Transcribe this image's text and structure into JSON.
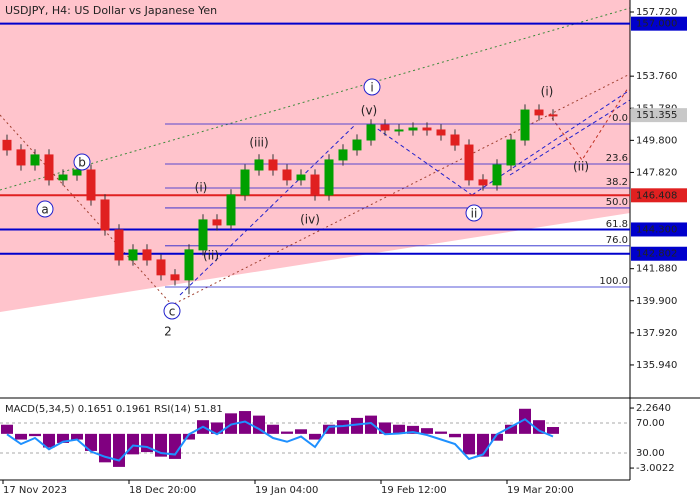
{
  "chart_data": [
    {
      "type": "candlestick",
      "title": "USDJPY, H4:  US Dollar vs Japanese Yen",
      "categories": [
        "17 Nov 2023",
        null,
        null,
        null,
        null,
        null,
        null,
        null,
        null,
        "18 Dec 20:00",
        null,
        null,
        null,
        null,
        null,
        null,
        null,
        null,
        "19 Jan 04:00",
        null,
        null,
        null,
        null,
        null,
        null,
        null,
        null,
        "19 Feb 12:00",
        null,
        null,
        null,
        null,
        null,
        null,
        null,
        null,
        "19 Mar 20:00",
        null,
        null,
        null
      ],
      "open": [
        149.8,
        149.21,
        148.28,
        148.9,
        147.36,
        147.66,
        147.97,
        146.12,
        144.27,
        142.42,
        143.04,
        142.42,
        141.5,
        141.19,
        143.04,
        144.89,
        144.58,
        146.43,
        147.97,
        148.59,
        147.97,
        147.36,
        147.66,
        146.43,
        148.59,
        149.21,
        149.82,
        150.75,
        150.44,
        150.44,
        150.56,
        150.44,
        150.13,
        149.51,
        147.36,
        147.05,
        148.28,
        149.82,
        151.67,
        151.37
      ],
      "high": [
        150.15,
        149.56,
        149.25,
        149.25,
        148.01,
        148.32,
        148.32,
        146.47,
        144.62,
        143.39,
        143.39,
        142.77,
        141.85,
        143.39,
        145.24,
        145.24,
        146.78,
        148.32,
        148.94,
        148.94,
        148.32,
        148.01,
        148.01,
        148.94,
        149.56,
        150.17,
        151.1,
        151.1,
        150.79,
        150.91,
        150.91,
        150.79,
        150.48,
        149.86,
        147.71,
        148.63,
        150.17,
        152.02,
        152.02,
        151.72
      ],
      "low": [
        148.86,
        147.93,
        147.93,
        147.01,
        147.01,
        147.31,
        145.77,
        143.92,
        142.07,
        142.07,
        142.07,
        141.15,
        140.84,
        140.3,
        142.69,
        144.23,
        144.23,
        146.08,
        147.62,
        147.62,
        147.01,
        147.01,
        146.08,
        146.08,
        148.24,
        148.86,
        149.47,
        150.09,
        150.09,
        150.09,
        150.09,
        149.78,
        149.16,
        147.01,
        146.7,
        146.7,
        147.93,
        149.47,
        151.02,
        151.02
      ],
      "close": [
        149.21,
        148.28,
        148.9,
        147.36,
        147.66,
        147.97,
        146.12,
        144.27,
        142.42,
        143.04,
        142.42,
        141.5,
        141.19,
        143.04,
        144.89,
        144.58,
        146.43,
        147.97,
        148.59,
        147.97,
        147.36,
        147.66,
        146.43,
        148.59,
        149.21,
        149.82,
        150.75,
        150.44,
        150.44,
        150.56,
        150.44,
        150.13,
        149.51,
        147.36,
        147.05,
        148.28,
        149.82,
        151.67,
        151.37,
        151.36
      ],
      "up_color": "#00a000",
      "down_color": "#e02020",
      "ylim": [
        133.9,
        158.46
      ],
      "yticks": [
        {
          "value": 157.72,
          "label": "157.720"
        },
        {
          "value": 153.76,
          "label": "153.760"
        },
        {
          "value": 151.78,
          "label": "151.780"
        },
        {
          "value": 149.8,
          "label": "149.800"
        },
        {
          "value": 147.82,
          "label": "147.820"
        },
        {
          "value": 141.88,
          "label": "141.880"
        },
        {
          "value": 139.9,
          "label": "139.900"
        },
        {
          "value": 137.92,
          "label": "137.920"
        },
        {
          "value": 135.94,
          "label": "135.940"
        }
      ],
      "levels": [
        {
          "value": 157.0,
          "label": "157.000",
          "color": "#0000cc"
        },
        {
          "value": 146.408,
          "label": "146.408",
          "color": "#e02020"
        },
        {
          "value": 144.3,
          "label": "144.300",
          "color": "#0000cc"
        },
        {
          "value": 142.802,
          "label": "142.802",
          "color": "#0000cc"
        }
      ],
      "current_price": {
        "value": 151.355,
        "label": "151.355"
      },
      "fib_levels": [
        {
          "value": 150.81,
          "label": "0.0"
        },
        {
          "value": 148.34,
          "label": "23.6"
        },
        {
          "value": 146.86,
          "label": "38.2"
        },
        {
          "value": 145.63,
          "label": "50.0"
        },
        {
          "value": 144.27,
          "label": "61.8"
        },
        {
          "value": 143.29,
          "label": "76.0"
        },
        {
          "value": 140.75,
          "label": "100.0"
        }
      ],
      "annotations": [
        {
          "text": "a",
          "color": "#2020cc",
          "circled": true
        },
        {
          "text": "b",
          "color": "#2020cc",
          "circled": true
        },
        {
          "text": "c",
          "color": "#2020cc",
          "circled": true
        },
        {
          "text": "2",
          "color": "#c03020",
          "circled": false
        },
        {
          "text": "(i)",
          "color": "#c03020",
          "circled": false
        },
        {
          "text": "(ii)",
          "color": "#c03020",
          "circled": false
        },
        {
          "text": "(iii)",
          "color": "#c03020",
          "circled": false
        },
        {
          "text": "(iv)",
          "color": "#c03020",
          "circled": false
        },
        {
          "text": "(v)",
          "color": "#c03020",
          "circled": false
        },
        {
          "text": "i",
          "color": "#2020cc",
          "circled": true
        },
        {
          "text": "ii",
          "color": "#2020cc",
          "circled": true
        },
        {
          "text": "(i)",
          "color": "#c03020",
          "circled": false
        },
        {
          "text": "(ii)",
          "color": "#c03020",
          "circled": false
        }
      ]
    },
    {
      "type": "bar",
      "title": "MACD(5,34,5) 0.1651 0.1961 RSI(14) 51.81",
      "values": [
        0.8,
        -0.5,
        -0.2,
        -1.2,
        -0.8,
        -0.5,
        -1.5,
        -2.5,
        -2.9,
        -1.8,
        -1.6,
        -2.0,
        -2.2,
        -0.5,
        1.2,
        1.0,
        1.8,
        2.0,
        1.6,
        0.8,
        0.2,
        0.4,
        -0.5,
        0.8,
        1.2,
        1.4,
        1.6,
        1.0,
        0.8,
        0.7,
        0.5,
        0.2,
        -0.3,
        -1.8,
        -2.0,
        -0.6,
        0.8,
        2.2,
        1.2,
        0.6
      ],
      "color": "#800080",
      "ylim": [
        -4.05,
        2.97
      ],
      "yticks": [
        {
          "value": 2.264,
          "label": "2.2640"
        },
        {
          "value": -3.0022,
          "label": "-3.0022"
        }
      ],
      "series": [
        {
          "axis": "y2",
          "color": "#1e90ff",
          "values": [
            55,
            42,
            50,
            35,
            45,
            48,
            32,
            25,
            20,
            40,
            38,
            30,
            28,
            55,
            65,
            55,
            68,
            72,
            62,
            50,
            45,
            52,
            38,
            65,
            66,
            68,
            70,
            55,
            56,
            58,
            54,
            48,
            42,
            22,
            28,
            55,
            65,
            75,
            60,
            52
          ]
        }
      ],
      "y2lim": [
        -6,
        100.7
      ],
      "y2ticks": [
        {
          "value": 70,
          "label": "70.00"
        },
        {
          "value": 30,
          "label": "30.00"
        }
      ]
    }
  ]
}
